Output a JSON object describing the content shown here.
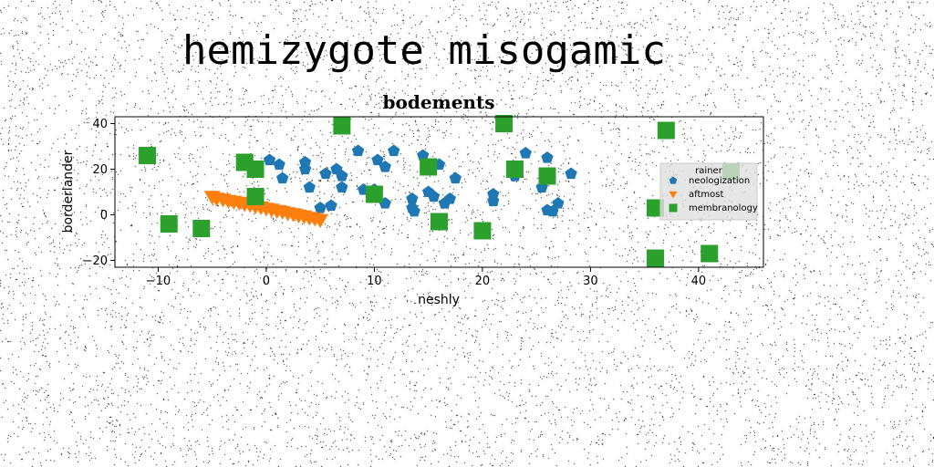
{
  "page_title": "hemizygote misogamic",
  "chart_data": {
    "type": "scatter",
    "title": "bodements",
    "xlabel": "neshly",
    "ylabel": "borderlander",
    "xlim": [
      -14,
      46
    ],
    "ylim": [
      -23,
      43
    ],
    "xticks": [
      -10,
      0,
      10,
      20,
      30,
      40
    ],
    "yticks": [
      -20,
      0,
      20,
      40
    ],
    "grid": false,
    "legend": {
      "title": "rainer",
      "placement": "right"
    },
    "series": [
      {
        "name": "neologization",
        "marker": "pentagon",
        "color": "#1f77b4",
        "x": [
          0.3,
          1.2,
          1.5,
          3.6,
          3.6,
          4,
          5,
          5.5,
          6,
          6.5,
          7,
          7,
          8.5,
          9,
          10,
          10.3,
          11,
          11,
          11.8,
          13.5,
          13.5,
          13.7,
          14.5,
          15,
          15.5,
          16,
          16.5,
          17,
          17.5,
          21,
          21,
          23,
          24,
          25.5,
          26,
          26,
          26.5,
          27,
          28.2
        ],
        "y": [
          24,
          22,
          16,
          23,
          20,
          12,
          3,
          18,
          4,
          20,
          12,
          17,
          28,
          11,
          11,
          24,
          5,
          21,
          28,
          7,
          3,
          1.5,
          26,
          10,
          8,
          22,
          5,
          7,
          16,
          9,
          6,
          17,
          27,
          12,
          2,
          25,
          1.5,
          5,
          18
        ]
      },
      {
        "name": "aftmost",
        "marker": "triangle-down",
        "color": "#ff7f0e",
        "x": [
          -5.0,
          -4.6,
          -4.0,
          -3.5,
          -3.0,
          -2.5,
          -2.0,
          -1.5,
          -1.0,
          -0.5,
          0.0,
          0.5,
          1.0,
          1.5,
          2.0,
          2.5,
          3.0,
          3.5,
          4.0,
          4.5,
          5.0
        ],
        "y": [
          8.0,
          7.2,
          6.8,
          6.2,
          5.8,
          5.4,
          4.8,
          4.4,
          3.8,
          3.4,
          2.8,
          2.4,
          1.8,
          1.4,
          0.8,
          0.4,
          -0.2,
          -0.6,
          -1.2,
          -1.6,
          -2.2
        ]
      },
      {
        "name": "membranology",
        "marker": "square",
        "color": "#2ca02c",
        "x": [
          -11,
          -9,
          -6,
          -2,
          -1,
          -1,
          7,
          10,
          15,
          16,
          20,
          22,
          23,
          26,
          36,
          36,
          37,
          41,
          43
        ],
        "y": [
          26,
          -4,
          -6,
          23,
          20,
          8,
          39,
          9,
          21,
          -3,
          -7,
          40,
          20,
          17,
          -19,
          3,
          37,
          -17,
          19
        ]
      }
    ]
  }
}
